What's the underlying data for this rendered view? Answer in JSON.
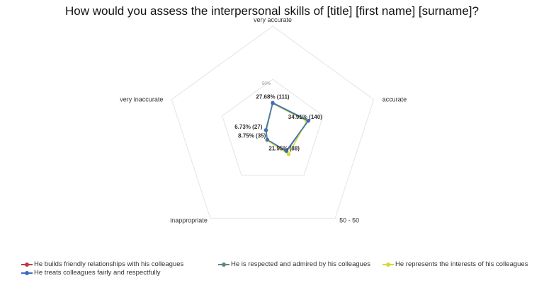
{
  "title": "How would you assess the interpersonal skills of [title] [first name] [surname]?",
  "chart_data": {
    "type": "radar",
    "axes": [
      "very accurate",
      "accurate",
      "50 - 50",
      "inappropriate",
      "very inaccurate"
    ],
    "ring_tick_label": "50%",
    "ring_tick_value": 50,
    "rmax": 100,
    "series": [
      {
        "name": "He builds friendly relationships with his colleagues",
        "color": "#c0394b",
        "values": [
          27.68,
          34.91,
          21.95,
          8.75,
          6.73
        ]
      },
      {
        "name": "He is respected and admired by his colleagues",
        "color": "#5a8a88",
        "values": [
          27.9,
          35.4,
          22.3,
          8.9,
          6.9
        ]
      },
      {
        "name": "He represents the interests of his colleagues",
        "color": "#d4d934",
        "values": [
          27.2,
          33.6,
          25.6,
          9.3,
          6.2
        ]
      },
      {
        "name": "He treats colleagues fairly and respectfully",
        "color": "#3b6fbf",
        "values": [
          27.5,
          35.1,
          21.7,
          8.6,
          6.6
        ]
      }
    ],
    "data_labels": [
      {
        "axis": 0,
        "text": "27.68% (111)"
      },
      {
        "axis": 1,
        "text": "34.91% (140)"
      },
      {
        "axis": 2,
        "text": "21.95% (88)"
      },
      {
        "axis": 3,
        "text": "8.75% (35)"
      },
      {
        "axis": 4,
        "text": "6.73% (27)"
      }
    ],
    "legend": "bottom"
  }
}
